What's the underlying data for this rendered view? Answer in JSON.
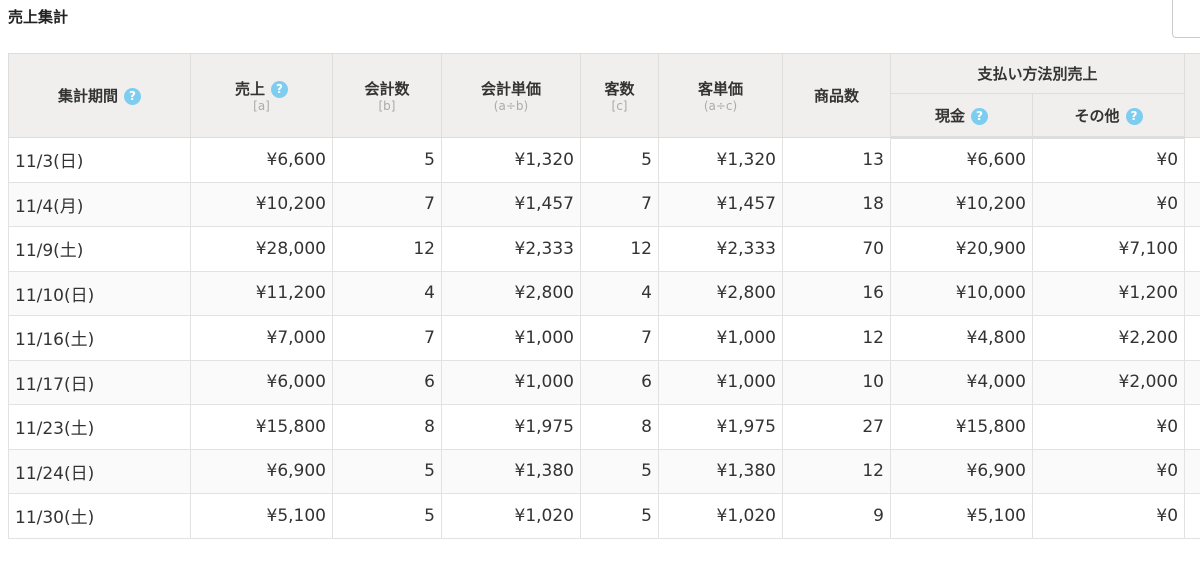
{
  "page_title": "売上集計",
  "headers": {
    "period": "集計期間",
    "sales": "売上",
    "sales_sub": "[a]",
    "checkouts": "会計数",
    "checkouts_sub": "[b]",
    "checkout_unit": "会計単価",
    "checkout_unit_sub": "(a÷b)",
    "customers": "客数",
    "customers_sub": "[c]",
    "customer_unit": "客単価",
    "customer_unit_sub": "(a÷c)",
    "items": "商品数",
    "payment_group": "支払い方法別売上",
    "cash": "現金",
    "other": "その他",
    "help": "?"
  },
  "rows": [
    [
      "11/3(日)",
      "¥6,600",
      "5",
      "¥1,320",
      "5",
      "¥1,320",
      "13",
      "¥6,600",
      "¥0"
    ],
    [
      "11/4(月)",
      "¥10,200",
      "7",
      "¥1,457",
      "7",
      "¥1,457",
      "18",
      "¥10,200",
      "¥0"
    ],
    [
      "11/9(土)",
      "¥28,000",
      "12",
      "¥2,333",
      "12",
      "¥2,333",
      "70",
      "¥20,900",
      "¥7,100"
    ],
    [
      "11/10(日)",
      "¥11,200",
      "4",
      "¥2,800",
      "4",
      "¥2,800",
      "16",
      "¥10,000",
      "¥1,200"
    ],
    [
      "11/16(土)",
      "¥7,000",
      "7",
      "¥1,000",
      "7",
      "¥1,000",
      "12",
      "¥4,800",
      "¥2,200"
    ],
    [
      "11/17(日)",
      "¥6,000",
      "6",
      "¥1,000",
      "6",
      "¥1,000",
      "10",
      "¥4,000",
      "¥2,000"
    ],
    [
      "11/23(土)",
      "¥15,800",
      "8",
      "¥1,975",
      "8",
      "¥1,975",
      "27",
      "¥15,800",
      "¥0"
    ],
    [
      "11/24(日)",
      "¥6,900",
      "5",
      "¥1,380",
      "5",
      "¥1,380",
      "12",
      "¥6,900",
      "¥0"
    ],
    [
      "11/30(土)",
      "¥5,100",
      "5",
      "¥1,020",
      "5",
      "¥1,020",
      "9",
      "¥5,100",
      "¥0"
    ]
  ]
}
